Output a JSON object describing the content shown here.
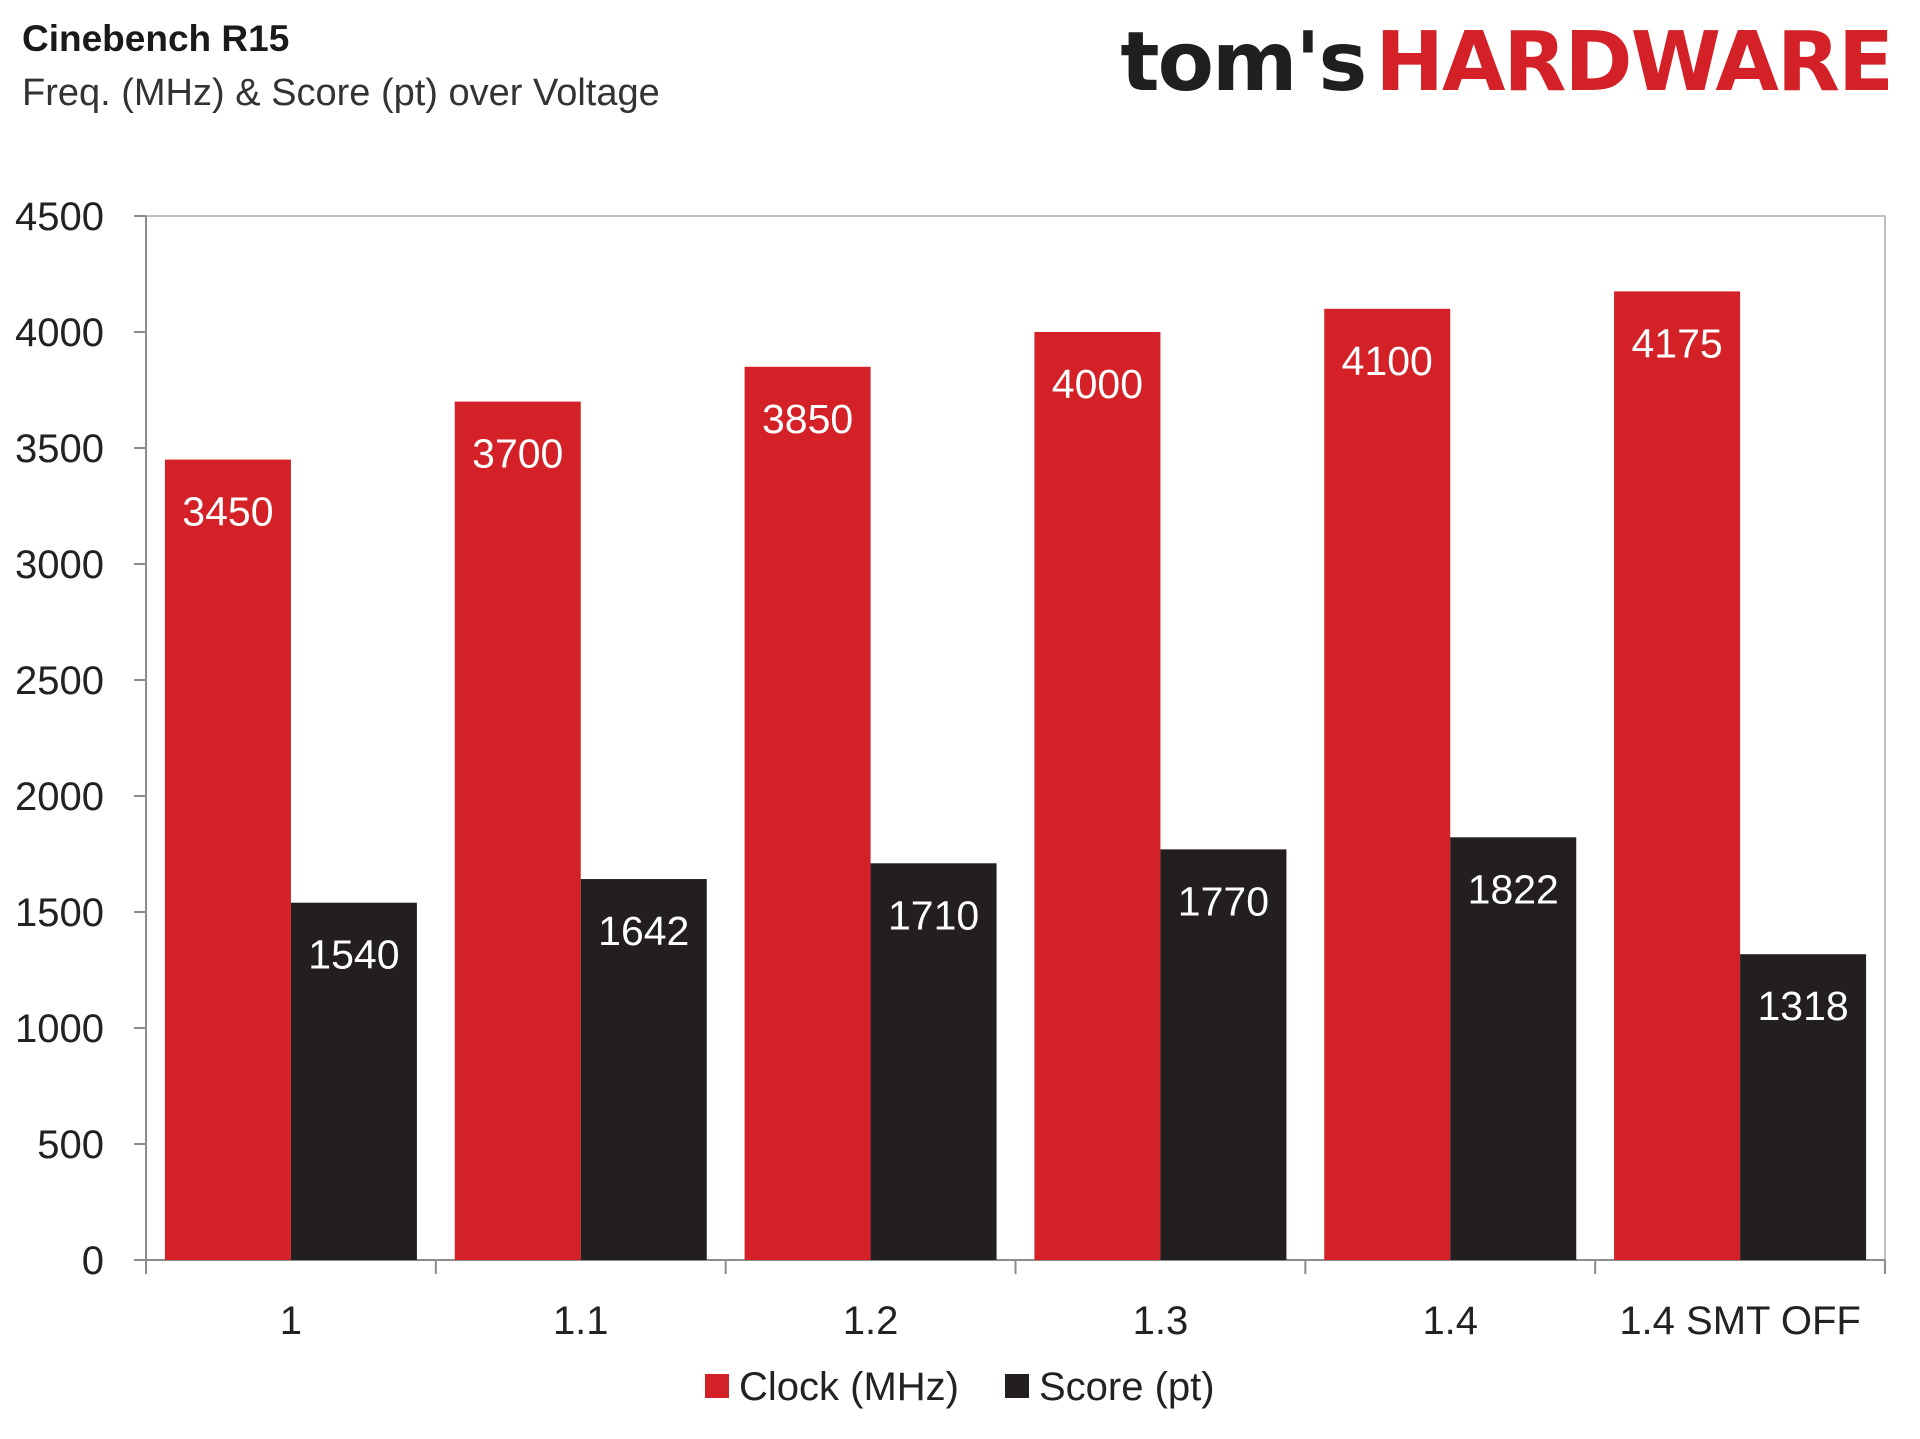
{
  "brand": {
    "toms": "tom's",
    "hardware": "HARDWARE"
  },
  "chart_data": {
    "type": "bar",
    "title": "Cinebench R15",
    "subtitle": "Freq. (MHz) & Score (pt) over Voltage",
    "xlabel": "",
    "ylabel": "",
    "categories": [
      "1",
      "1.1",
      "1.2",
      "1.3",
      "1.4",
      "1.4 SMT OFF"
    ],
    "series": [
      {
        "name": "Clock (MHz)",
        "color": "#d42027",
        "values": [
          3450,
          3700,
          3850,
          4000,
          4100,
          4175
        ]
      },
      {
        "name": "Score (pt)",
        "color": "#231f20",
        "values": [
          1540,
          1642,
          1710,
          1770,
          1822,
          1318
        ]
      }
    ],
    "ylim": [
      0,
      4500
    ],
    "yticks": [
      0,
      500,
      1000,
      1500,
      2000,
      2500,
      3000,
      3500,
      4000,
      4500
    ],
    "grid": false,
    "legend": "bottom-center"
  }
}
